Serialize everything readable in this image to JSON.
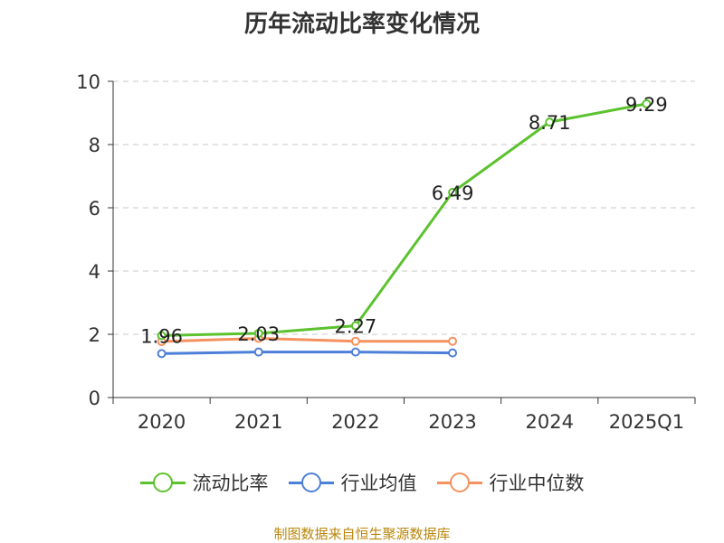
{
  "chart_data": {
    "type": "line",
    "title": "历年流动比率变化情况",
    "categories": [
      "2020",
      "2021",
      "2022",
      "2023",
      "2024",
      "2025Q1"
    ],
    "ylim": [
      0,
      10
    ],
    "yticks": [
      0,
      2,
      4,
      6,
      8,
      10
    ],
    "grid": true,
    "legend_position": "bottom",
    "series": [
      {
        "name": "流动比率",
        "color": "#5cc22e",
        "values": [
          1.96,
          2.03,
          2.27,
          6.49,
          8.71,
          9.29
        ],
        "labels": [
          "1.96",
          "2.03",
          "2.27",
          "6.49",
          "8.71",
          "9.29"
        ]
      },
      {
        "name": "行业均值",
        "color": "#4e7fd8",
        "values": [
          1.39,
          1.44,
          1.44,
          1.41,
          null,
          null
        ]
      },
      {
        "name": "行业中位数",
        "color": "#f4915f",
        "values": [
          1.77,
          1.87,
          1.78,
          1.78,
          null,
          null
        ]
      }
    ]
  },
  "footer": {
    "source": "制图数据来自恒生聚源数据库"
  }
}
